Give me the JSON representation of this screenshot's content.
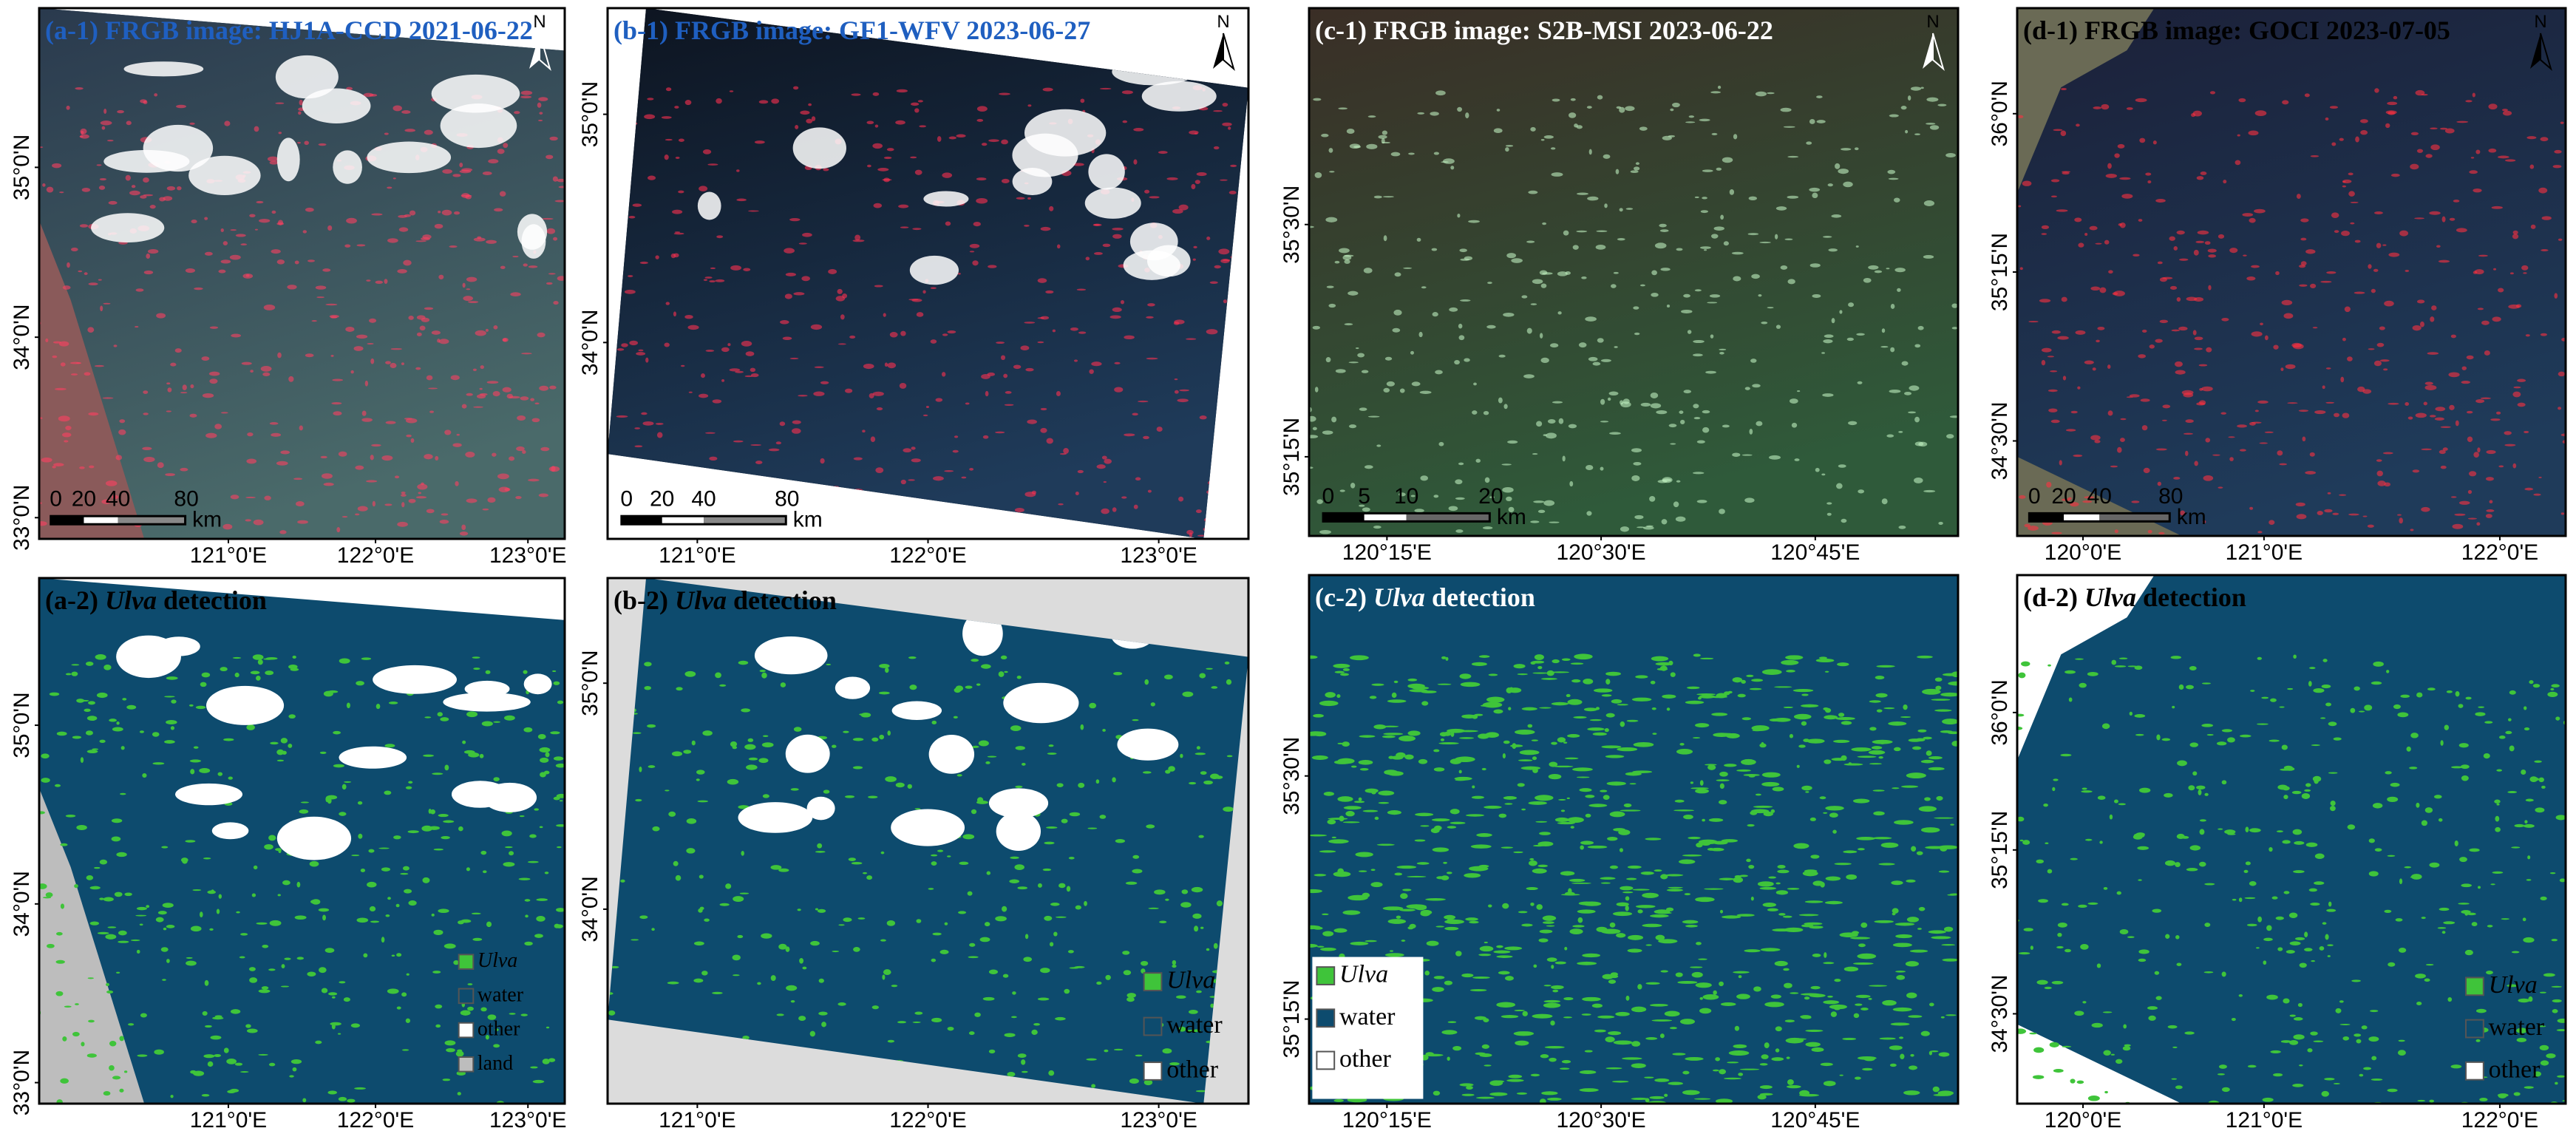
{
  "panels": [
    {
      "title": [
        "(a-1) FRGB image: HJ1A-CCD 2021-06-22"
      ],
      "title_color": "#1f5fc0",
      "north": "N",
      "scalebar": [
        "0",
        "20",
        "40",
        "80",
        "km"
      ],
      "yticks": [
        "35°0'N",
        "34°0'N",
        "33°0'N"
      ],
      "xticks": [
        "121°0'E",
        "122°0'E",
        "123°0'E"
      ]
    },
    {
      "title": [
        "(b-1) FRGB image: GF1-WFV 2023-06-27"
      ],
      "title_color": "#1f5fc0",
      "north": "N",
      "scalebar": [
        "0",
        "20",
        "40",
        "80",
        "km"
      ],
      "yticks": [
        "35°0'N",
        "34°0'N"
      ],
      "xticks": [
        "121°0'E",
        "122°0'E",
        "123°0'E"
      ]
    },
    {
      "title": [
        "(c-1) FRGB image: S2B-MSI 2023-06-22"
      ],
      "title_color": "#ffffff",
      "north": "N",
      "scalebar": [
        "0",
        "5",
        "10",
        "20",
        "km"
      ],
      "yticks": [
        "35°30'N",
        "35°15'N"
      ],
      "xticks": [
        "120°15'E",
        "120°30'E",
        "120°45'E"
      ]
    },
    {
      "title": [
        "(d-1) FRGB image: GOCI 2023-07-05"
      ],
      "title_color": "#000000",
      "north": "N",
      "scalebar": [
        "0",
        "20",
        "40",
        "80",
        "km"
      ],
      "yticks": [
        "36°0'N",
        "35°15'N",
        "34°30'N"
      ],
      "xticks": [
        "120°0'E",
        "121°0'E",
        "122°0'E"
      ]
    },
    {
      "title": [
        "(a-2)",
        "Ulva",
        "detection"
      ],
      "italic": 1,
      "title_color": "#000000",
      "yticks": [
        "35°0'N",
        "34°0'N",
        "33°0'N"
      ],
      "xticks": [
        "121°0'E",
        "122°0'E",
        "123°0'E"
      ],
      "legend": [
        {
          "name": "Ulva",
          "color": "#3fc43a",
          "italic": true
        },
        {
          "name": "water",
          "color": "#0d4b6e"
        },
        {
          "name": "other",
          "color": "#ffffff"
        },
        {
          "name": "land",
          "color": "#bdbdbd"
        }
      ]
    },
    {
      "title": [
        "(b-2)",
        "Ulva",
        "detection"
      ],
      "italic": 1,
      "title_color": "#000000",
      "yticks": [
        "35°0'N",
        "34°0'N"
      ],
      "xticks": [
        "121°0'E",
        "122°0'E",
        "123°0'E"
      ],
      "legend": [
        {
          "name": "Ulva",
          "color": "#3fc43a",
          "italic": true
        },
        {
          "name": "water",
          "color": "#0d4b6e"
        },
        {
          "name": "other",
          "color": "#ffffff"
        }
      ]
    },
    {
      "title": [
        "(c-2)",
        "Ulva",
        "detection"
      ],
      "italic": 1,
      "title_color": "#ffffff",
      "yticks": [
        "35°30'N",
        "35°15'N"
      ],
      "xticks": [
        "120°15'E",
        "120°30'E",
        "120°45'E"
      ],
      "legend": [
        {
          "name": "Ulva",
          "color": "#3fc43a",
          "italic": true
        },
        {
          "name": "water",
          "color": "#0d4b6e"
        },
        {
          "name": "other",
          "color": "#ffffff"
        }
      ]
    },
    {
      "title": [
        "(d-2)",
        "Ulva",
        "detection"
      ],
      "italic": 1,
      "title_color": "#000000",
      "yticks": [
        "36°0'N",
        "35°15'N",
        "34°30'N"
      ],
      "xticks": [
        "120°0'E",
        "121°0'E",
        "122°0'E"
      ],
      "legend": [
        {
          "name": "Ulva",
          "color": "#3fc43a",
          "italic": true
        },
        {
          "name": "water",
          "color": "#0d4b6e"
        },
        {
          "name": "other",
          "color": "#ffffff"
        }
      ]
    }
  ]
}
